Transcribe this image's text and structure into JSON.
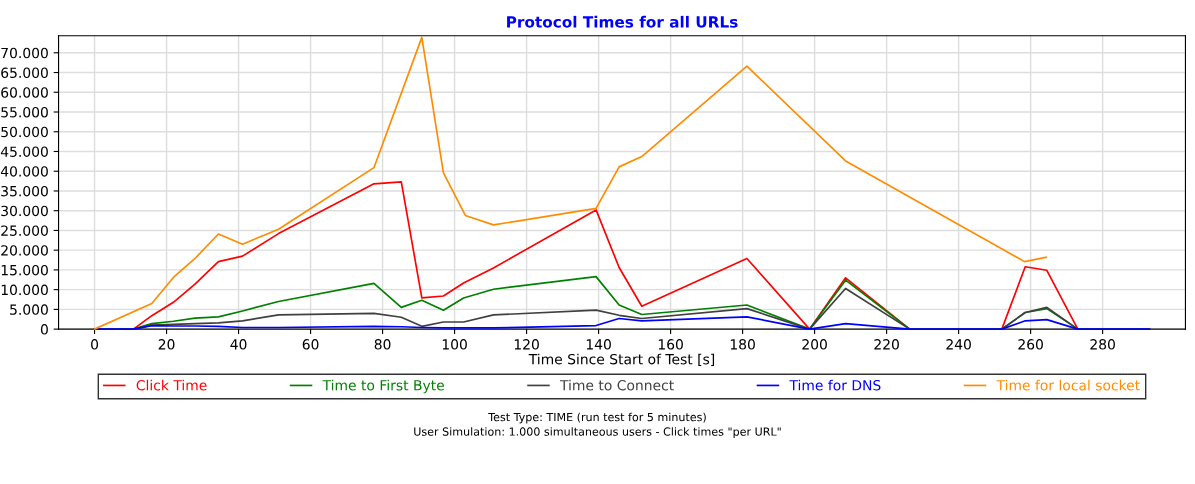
{
  "chart_data": {
    "type": "line",
    "title": "Protocol Times for all URLs",
    "xlabel": "Time Since Start of Test [s]",
    "x": [
      0,
      10.8,
      15.9,
      21.9,
      27.9,
      34.4,
      41.1,
      51.1,
      77.6,
      85.2,
      90.9,
      96.9,
      102.5,
      110.8,
      139.3,
      145.7,
      152.0,
      181.2,
      198.6,
      208.6,
      226.4,
      252.0,
      258.5,
      264.5,
      273.1,
      293.0
    ],
    "series": [
      {
        "name": "Click Time",
        "color": "#ff0000",
        "values": [
          0,
          0,
          3400,
          6800,
          11400,
          17100,
          18500,
          24200,
          36800,
          37300,
          7900,
          8400,
          11700,
          15500,
          30200,
          15600,
          5800,
          17900,
          0,
          13000,
          0,
          0,
          15800,
          14900,
          0,
          0
        ]
      },
      {
        "name": "Time to First Byte",
        "color": "#008000",
        "values": [
          0,
          0,
          1400,
          2000,
          2800,
          3100,
          4600,
          7000,
          11600,
          5500,
          7300,
          4800,
          7900,
          10100,
          13300,
          6100,
          3700,
          6100,
          0,
          12400,
          0,
          0,
          4200,
          5200,
          0,
          0
        ]
      },
      {
        "name": "Time to Connect",
        "color": "#404040",
        "values": [
          0,
          0,
          1000,
          1200,
          1400,
          1600,
          2100,
          3600,
          4000,
          3000,
          700,
          1800,
          1800,
          3600,
          4800,
          3500,
          2700,
          5200,
          0,
          10300,
          0,
          0,
          4200,
          5500,
          0,
          0
        ]
      },
      {
        "name": "Time for DNS",
        "color": "#0000ff",
        "values": [
          0,
          0,
          900,
          800,
          800,
          700,
          400,
          400,
          700,
          600,
          400,
          300,
          300,
          300,
          900,
          2700,
          2100,
          3100,
          0,
          1400,
          0,
          0,
          2100,
          2400,
          0,
          0
        ]
      },
      {
        "name": "Time for local socket",
        "color": "#ff8c00",
        "x": [
          0,
          15.9,
          21.9,
          27.9,
          34.4,
          41.1,
          51.1,
          77.6,
          90.9,
          96.9,
          103.0,
          110.8,
          139.3,
          145.7,
          152.0,
          181.2,
          208.6,
          258.3,
          264.3
        ],
        "values": [
          0,
          6500,
          13100,
          17900,
          24100,
          21500,
          25300,
          40900,
          73900,
          39600,
          28800,
          26400,
          30600,
          41100,
          43700,
          66600,
          42600,
          17100,
          18200
        ]
      }
    ],
    "xlim": [
      -10,
      303
    ],
    "ylim": [
      0,
      74300
    ],
    "xticks": [
      0,
      20,
      40,
      60,
      80,
      100,
      120,
      140,
      160,
      180,
      200,
      220,
      240,
      260,
      280
    ],
    "yticks": [
      0,
      {
        "value": 5000,
        "label": "5.000"
      },
      {
        "value": 10000,
        "label": "10.000"
      },
      {
        "value": 15000,
        "label": "15.000"
      },
      {
        "value": 20000,
        "label": "20.000"
      },
      {
        "value": 25000,
        "label": "25.000"
      },
      {
        "value": 30000,
        "label": "30.000"
      },
      {
        "value": 35000,
        "label": "35.000"
      },
      {
        "value": 40000,
        "label": "40.000"
      },
      {
        "value": 45000,
        "label": "45.000"
      },
      {
        "value": 50000,
        "label": "50.000"
      },
      {
        "value": 55000,
        "label": "55.000"
      },
      {
        "value": 60000,
        "label": "60.000"
      },
      {
        "value": 65000,
        "label": "65.000"
      },
      {
        "value": 70000,
        "label": "70.000"
      }
    ],
    "grid": true,
    "legend": "bottom",
    "marker": "none",
    "line_style": "solid",
    "annotations": [
      "Test Type: TIME (run test for 5 minutes)",
      "User Simulation: 1.000 simultaneous users - Click times \"per URL\""
    ]
  }
}
